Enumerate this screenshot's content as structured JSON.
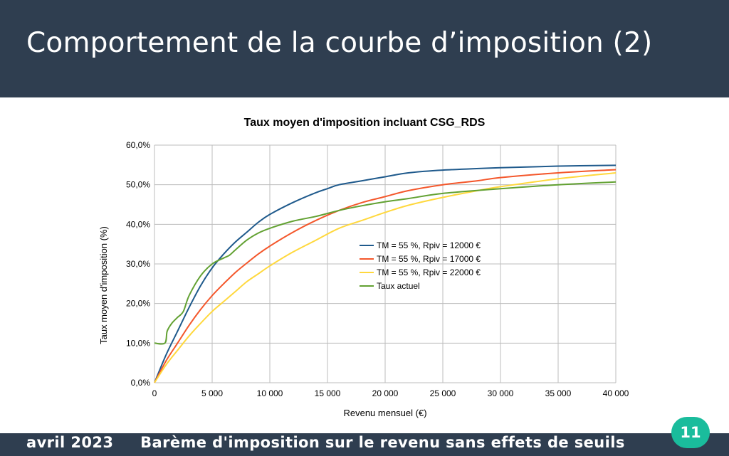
{
  "slide": {
    "title": "Comportement de la courbe d’imposition (2)",
    "footer_date": "avril 2023",
    "footer_text": "Barème d'imposition sur le revenu sans effets de seuils",
    "page_number": "11"
  },
  "colors": {
    "header_bg": "#2f3e50",
    "badge": "#1abc9c",
    "series": [
      "#1f5a8c",
      "#f4572b",
      "#ffd83d",
      "#62a132"
    ]
  },
  "chart_data": {
    "type": "line",
    "title": "Taux moyen d'imposition incluant CSG_RDS",
    "xlabel": "Revenu mensuel (€)",
    "ylabel": "Taux moyen d'imposition (%)",
    "xlim": [
      0,
      40000
    ],
    "ylim": [
      0,
      0.6
    ],
    "x_ticks": [
      0,
      5000,
      10000,
      15000,
      20000,
      25000,
      30000,
      35000,
      40000
    ],
    "x_tick_labels": [
      "0",
      "5 000",
      "10 000",
      "15 000",
      "20 000",
      "25 000",
      "30 000",
      "35 000",
      "40 000"
    ],
    "y_ticks": [
      0,
      0.1,
      0.2,
      0.3,
      0.4,
      0.5,
      0.6
    ],
    "y_tick_labels": [
      "0,0%",
      "10,0%",
      "20,0%",
      "30,0%",
      "40,0%",
      "50,0%",
      "60,0%"
    ],
    "grid": true,
    "legend_position": "center-right",
    "series": [
      {
        "name": "TM = 55 %, Rpiv = 12000 €",
        "x": [
          0,
          1000,
          2000,
          3000,
          4000,
          5000,
          6000,
          7000,
          8000,
          9000,
          10000,
          12000,
          14000,
          15000,
          16000,
          18000,
          20000,
          22000,
          25000,
          30000,
          35000,
          40000
        ],
        "y": [
          0,
          0.07,
          0.13,
          0.19,
          0.245,
          0.29,
          0.325,
          0.355,
          0.38,
          0.405,
          0.425,
          0.455,
          0.48,
          0.49,
          0.5,
          0.51,
          0.52,
          0.53,
          0.537,
          0.543,
          0.547,
          0.549
        ]
      },
      {
        "name": "TM = 55 %, Rpiv = 17000 €",
        "x": [
          0,
          1000,
          2000,
          3000,
          4000,
          5000,
          6000,
          7000,
          8000,
          9000,
          10000,
          12000,
          14000,
          16000,
          18000,
          20000,
          22000,
          25000,
          28000,
          30000,
          35000,
          40000
        ],
        "y": [
          0,
          0.055,
          0.1,
          0.145,
          0.185,
          0.22,
          0.25,
          0.278,
          0.302,
          0.325,
          0.345,
          0.38,
          0.41,
          0.435,
          0.455,
          0.47,
          0.485,
          0.5,
          0.51,
          0.518,
          0.53,
          0.538
        ]
      },
      {
        "name": "TM = 55 %, Rpiv = 22000 €",
        "x": [
          0,
          1000,
          2000,
          3000,
          4000,
          5000,
          6000,
          7000,
          8000,
          9000,
          10000,
          12000,
          14000,
          16000,
          18000,
          20000,
          22000,
          25000,
          28000,
          30000,
          35000,
          40000
        ],
        "y": [
          0,
          0.045,
          0.082,
          0.118,
          0.15,
          0.18,
          0.205,
          0.23,
          0.255,
          0.275,
          0.295,
          0.33,
          0.36,
          0.39,
          0.41,
          0.43,
          0.448,
          0.468,
          0.485,
          0.495,
          0.515,
          0.53
        ]
      },
      {
        "name": "Taux actuel",
        "x": [
          0,
          900,
          1100,
          1500,
          2000,
          2500,
          3000,
          4000,
          5000,
          6000,
          6500,
          7000,
          8000,
          9000,
          10000,
          12000,
          14000,
          16000,
          18000,
          20000,
          22000,
          25000,
          30000,
          35000,
          40000
        ],
        "y": [
          0.1,
          0.1,
          0.13,
          0.15,
          0.165,
          0.18,
          0.22,
          0.27,
          0.3,
          0.315,
          0.322,
          0.335,
          0.36,
          0.378,
          0.39,
          0.408,
          0.42,
          0.435,
          0.447,
          0.457,
          0.465,
          0.478,
          0.49,
          0.5,
          0.507
        ]
      }
    ]
  }
}
